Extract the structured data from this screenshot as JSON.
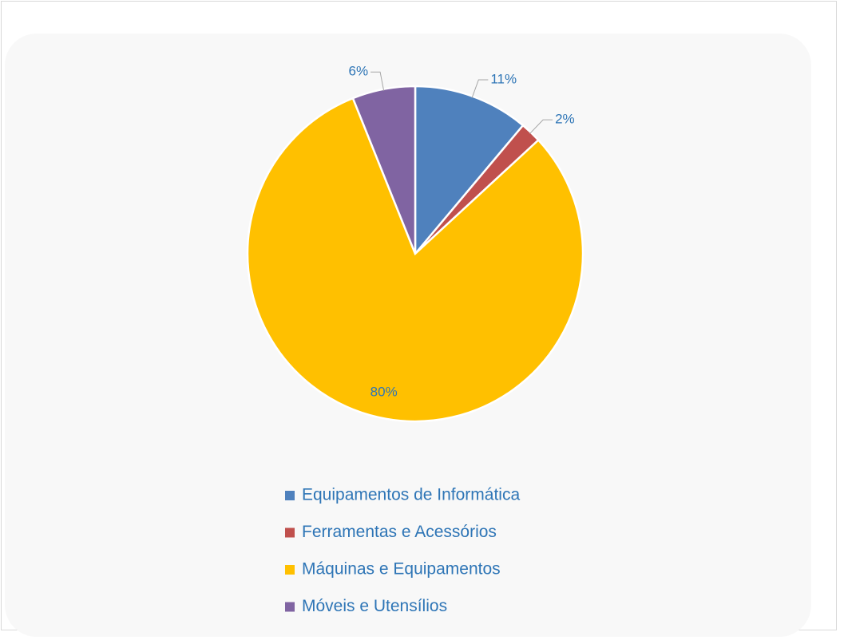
{
  "chart_data": {
    "type": "pie",
    "categories": [
      "Equipamentos de Informática",
      "Ferramentas e Acessórios",
      "Máquinas e Equipamentos",
      "Móveis e Utensílios"
    ],
    "values": [
      11,
      2,
      80,
      6
    ],
    "value_labels": [
      "11%",
      "2%",
      "80%",
      "6%"
    ],
    "colors": [
      "#4f81bd",
      "#c0504d",
      "#ffc000",
      "#8064a2"
    ],
    "legend": "bottom"
  }
}
